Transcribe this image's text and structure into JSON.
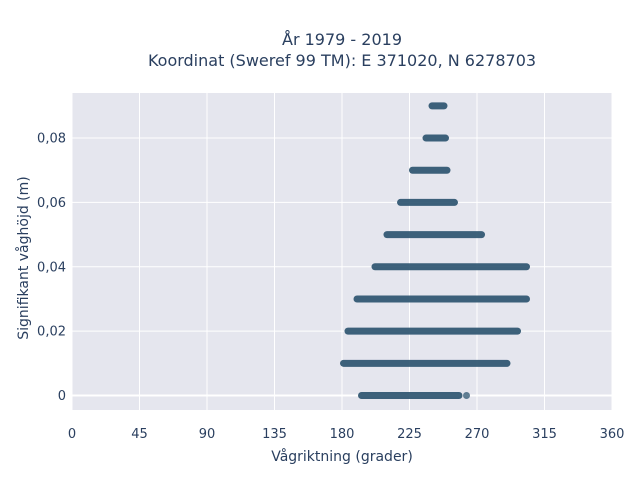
{
  "chart_data": {
    "type": "scatter",
    "title_line1": "År 1979 - 2019",
    "title_line2": "Koordinat (Sweref 99 TM): E 371020, N 6278703",
    "xlabel": "Vågriktning (grader)",
    "ylabel": "Signifikant våghöjd (m)",
    "xlim": [
      0,
      360
    ],
    "ylim": [
      -0.0045,
      0.094
    ],
    "x_ticks": [
      0,
      45,
      90,
      135,
      180,
      225,
      270,
      315,
      360
    ],
    "x_tick_labels": [
      "0",
      "45",
      "90",
      "135",
      "180",
      "225",
      "270",
      "315",
      "360"
    ],
    "y_ticks": [
      0,
      0.02,
      0.04,
      0.06,
      0.08
    ],
    "y_tick_labels": [
      "0",
      "0,02",
      "0,04",
      "0,06",
      "0,08"
    ],
    "grid": true,
    "marker_color": "#2e5570",
    "plot_background": "#e5e6ee",
    "series": [
      {
        "x_range": [
          193,
          258
        ],
        "y": 0.0,
        "outliers": [
          263
        ]
      },
      {
        "x_range": [
          181,
          290
        ],
        "y": 0.01
      },
      {
        "x_range": [
          184,
          297
        ],
        "y": 0.02
      },
      {
        "x_range": [
          190,
          303
        ],
        "y": 0.03
      },
      {
        "x_range": [
          202,
          303
        ],
        "y": 0.04
      },
      {
        "x_range": [
          210,
          273
        ],
        "y": 0.05
      },
      {
        "x_range": [
          219,
          255
        ],
        "y": 0.06
      },
      {
        "x_range": [
          227,
          250
        ],
        "y": 0.07
      },
      {
        "x_range": [
          236,
          249
        ],
        "y": 0.08
      },
      {
        "x_range": [
          240,
          248
        ],
        "y": 0.09
      }
    ]
  }
}
